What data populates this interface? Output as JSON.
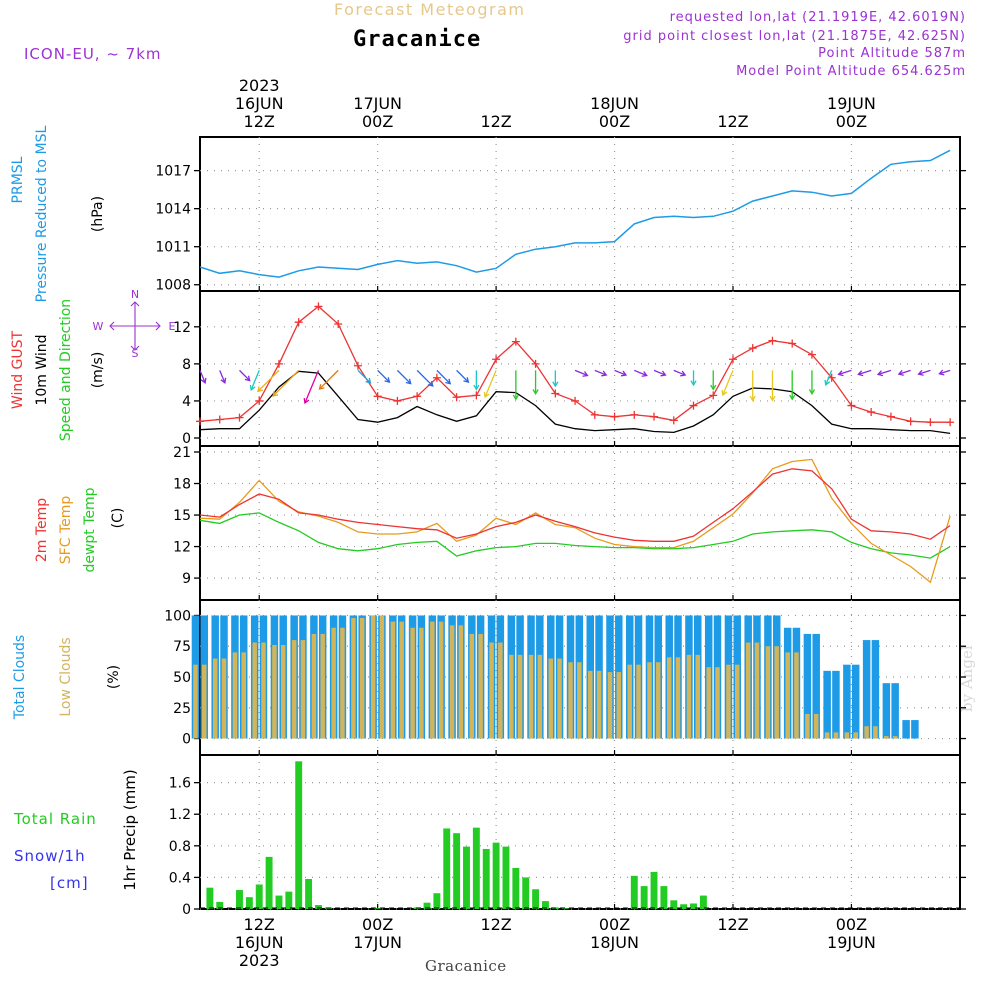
{
  "header": {
    "super_title": "Forecast Meteogram",
    "location": "Gracanice",
    "model": "ICON-EU, ~ 7km",
    "requested": "requested lon,lat (21.1919E, 42.6019N)",
    "grid_point": "grid point closest lon,lat (21.1875E, 42.625N)",
    "point_altitude": "Point Altitude 587m",
    "model_altitude": "Model Point Altitude 654.625m",
    "footer_location": "Gracanice",
    "watermark": "by Angel"
  },
  "colors": {
    "pressure": "#1e9be6",
    "gust": "#ee3333",
    "wind": "#000000",
    "temp2m": "#ee3333",
    "sfc_temp": "#e69b1e",
    "dewpt": "#22cc22",
    "total_clouds": "#1e9be6",
    "low_clouds": "#d2b45a",
    "rain": "#22cc22",
    "snow": "#3333ee",
    "purple_label": "#9b32d2"
  },
  "chart_data": [
    {
      "id": "pressure",
      "type": "line",
      "ylabel": [
        "PRMSL",
        "Pressure Reduced to MSL"
      ],
      "unit": "(hPa)",
      "yticks": [
        1008,
        1011,
        1014,
        1017
      ],
      "ylim": [
        1007.9,
        1019.1
      ],
      "x_hours": [
        0,
        2,
        4,
        6,
        8,
        10,
        12,
        14,
        16,
        18,
        20,
        22,
        24,
        26,
        28,
        30,
        32,
        34,
        36,
        38,
        40,
        42,
        44,
        46,
        48,
        50,
        52,
        54,
        56,
        58,
        60,
        62,
        64,
        66,
        68,
        70,
        72,
        74,
        76
      ],
      "series": [
        {
          "values": [
            1009.4,
            1008.9,
            1009.1,
            1008.8,
            1008.6,
            1009.1,
            1009.4,
            1009.3,
            1009.2,
            1009.6,
            1009.9,
            1009.7,
            1009.8,
            1009.5,
            1009.0,
            1009.3,
            1010.4,
            1010.8,
            1011.0,
            1011.3,
            1011.3,
            1011.4,
            1012.8,
            1013.3,
            1013.4,
            1013.3,
            1013.4,
            1013.8,
            1014.6,
            1015.0,
            1015.4,
            1015.3,
            1015.0,
            1015.2,
            1016.4,
            1017.5,
            1017.7,
            1017.8,
            1018.6
          ]
        }
      ]
    },
    {
      "id": "wind",
      "type": "line",
      "ylabel": [
        "Wind GUST",
        "10m Wind",
        "Speed and Direction"
      ],
      "unit": "(m/s)",
      "compass": [
        "N",
        "S",
        "W",
        "E"
      ],
      "yticks": [
        0,
        4,
        8,
        12
      ],
      "ylim": [
        0,
        15
      ],
      "x_hours": [
        0,
        2,
        4,
        6,
        8,
        10,
        12,
        14,
        16,
        18,
        20,
        22,
        24,
        26,
        28,
        30,
        32,
        34,
        36,
        38,
        40,
        42,
        44,
        46,
        48,
        50,
        52,
        54,
        56,
        58,
        60,
        62,
        64,
        66,
        68,
        70,
        72,
        74,
        76
      ],
      "series": [
        {
          "name": "Wind GUST",
          "values": [
            1.8,
            2.0,
            2.2,
            4.0,
            8.0,
            12.5,
            14.2,
            12.3,
            7.8,
            4.5,
            4.0,
            4.5,
            6.5,
            4.4,
            4.6,
            8.5,
            10.4,
            8.0,
            4.8,
            4.0,
            2.5,
            2.3,
            2.5,
            2.3,
            1.9,
            3.5,
            4.6,
            8.5,
            9.7,
            10.5,
            10.2,
            9.0,
            6.5,
            3.5,
            2.8,
            2.3,
            1.8,
            1.7,
            1.7
          ]
        },
        {
          "name": "10m Wind",
          "values": [
            0.9,
            1.0,
            1.0,
            3.0,
            5.5,
            7.2,
            7.0,
            4.5,
            2.0,
            1.7,
            2.2,
            3.4,
            2.5,
            1.8,
            2.4,
            5.0,
            4.9,
            3.5,
            1.5,
            1.0,
            0.8,
            0.9,
            1.0,
            0.7,
            0.6,
            1.3,
            2.5,
            4.5,
            5.4,
            5.3,
            5.0,
            3.5,
            1.5,
            1.0,
            1.0,
            0.9,
            0.8,
            0.8,
            0.5
          ]
        }
      ]
    },
    {
      "id": "temperature",
      "type": "line",
      "ylabel": [
        "2m Temp",
        "SFC Temp",
        "dewpt Temp"
      ],
      "unit": "(C)",
      "yticks": [
        9,
        12,
        15,
        18,
        21
      ],
      "ylim": [
        7.2,
        21
      ],
      "x_hours": [
        0,
        2,
        4,
        6,
        8,
        10,
        12,
        14,
        16,
        18,
        20,
        22,
        24,
        26,
        28,
        30,
        32,
        34,
        36,
        38,
        40,
        42,
        44,
        46,
        48,
        50,
        52,
        54,
        56,
        58,
        60,
        62,
        64,
        66,
        68,
        70,
        72,
        74,
        76
      ],
      "series": [
        {
          "name": "2m Temp",
          "values": [
            15.0,
            14.8,
            16.0,
            17.0,
            16.5,
            15.2,
            15.0,
            14.6,
            14.3,
            14.1,
            13.9,
            13.7,
            13.6,
            12.8,
            13.2,
            13.9,
            14.3,
            15.0,
            14.4,
            13.9,
            13.3,
            12.9,
            12.6,
            12.5,
            12.5,
            13.0,
            14.3,
            15.6,
            17.2,
            18.9,
            19.4,
            19.2,
            17.5,
            14.6,
            13.5,
            13.4,
            13.2,
            12.7,
            14.0
          ]
        },
        {
          "name": "SFC Temp",
          "values": [
            14.7,
            14.6,
            16.2,
            18.3,
            16.3,
            15.3,
            14.9,
            14.3,
            13.4,
            13.2,
            13.2,
            13.4,
            14.2,
            12.5,
            13.1,
            14.7,
            14.1,
            15.2,
            14.1,
            13.8,
            12.8,
            12.2,
            12.0,
            11.9,
            11.9,
            12.5,
            13.8,
            15.1,
            17.1,
            19.4,
            20.1,
            20.3,
            16.6,
            14.2,
            12.3,
            11.2,
            10.1,
            8.6,
            14.9
          ]
        },
        {
          "name": "dewpt Temp",
          "values": [
            14.5,
            14.2,
            15.0,
            15.2,
            14.3,
            13.5,
            12.4,
            11.8,
            11.6,
            11.8,
            12.2,
            12.4,
            12.5,
            11.1,
            11.6,
            11.9,
            12.0,
            12.3,
            12.3,
            12.1,
            12.0,
            11.9,
            11.9,
            11.8,
            11.8,
            11.9,
            12.2,
            12.5,
            13.2,
            13.4,
            13.5,
            13.6,
            13.4,
            12.4,
            11.8,
            11.4,
            11.2,
            10.9,
            12.0
          ]
        }
      ]
    },
    {
      "id": "clouds",
      "type": "bar",
      "ylabel": [
        "Total Clouds",
        "Low Clouds"
      ],
      "unit": "(%)",
      "yticks": [
        0,
        25,
        50,
        75,
        100
      ],
      "ylim": [
        -2,
        102
      ],
      "x_hours": [
        0,
        2,
        4,
        6,
        8,
        10,
        12,
        14,
        16,
        18,
        20,
        22,
        24,
        26,
        28,
        30,
        32,
        34,
        36,
        38,
        40,
        42,
        44,
        46,
        48,
        50,
        52,
        54,
        56,
        58,
        60,
        62,
        64,
        66,
        68,
        70,
        72,
        74,
        76
      ],
      "series": [
        {
          "name": "Total Clouds",
          "values": [
            100,
            100,
            100,
            100,
            100,
            100,
            100,
            100,
            100,
            100,
            100,
            100,
            100,
            100,
            100,
            100,
            100,
            100,
            100,
            100,
            100,
            100,
            100,
            100,
            100,
            100,
            100,
            100,
            100,
            100,
            90,
            85,
            55,
            60,
            80,
            45,
            15,
            0,
            0
          ]
        },
        {
          "name": "Low Clouds",
          "values": [
            60,
            65,
            70,
            78,
            76,
            80,
            85,
            90,
            98,
            100,
            95,
            90,
            95,
            92,
            85,
            78,
            68,
            68,
            65,
            62,
            55,
            54,
            60,
            62,
            66,
            68,
            58,
            60,
            78,
            75,
            70,
            20,
            5,
            5,
            10,
            2,
            0,
            0,
            0
          ]
        }
      ]
    },
    {
      "id": "precip",
      "type": "bar",
      "ylabel": [
        "Total Rain",
        "Snow/1h",
        "[cm]"
      ],
      "unit": "1hr Precip (mm)",
      "yticks": [
        0,
        0.4,
        0.8,
        1.2,
        1.6
      ],
      "ylim": [
        0,
        1.95
      ],
      "x_hours": [
        1,
        2,
        4,
        5,
        6,
        7,
        8,
        9,
        10,
        11,
        12,
        13,
        18,
        22,
        23,
        24,
        25,
        26,
        27,
        28,
        29,
        30,
        31,
        32,
        33,
        34,
        35,
        36,
        37,
        44,
        45,
        46,
        47,
        48,
        49,
        50,
        51
      ],
      "series": [
        {
          "name": "Total Rain",
          "values": [
            0.27,
            0.09,
            0.24,
            0.15,
            0.31,
            0.66,
            0.17,
            0.22,
            1.87,
            0.38,
            0.05,
            0.02,
            0.01,
            0.02,
            0.08,
            0.2,
            1.02,
            0.96,
            0.79,
            1.03,
            0.76,
            0.84,
            0.79,
            0.52,
            0.4,
            0.25,
            0.1,
            0.02,
            0.01,
            0.42,
            0.29,
            0.47,
            0.29,
            0.11,
            0.06,
            0.07,
            0.17
          ]
        },
        {
          "name": "Snow/1h",
          "values": [
            0,
            0,
            0,
            0,
            0,
            0,
            0,
            0,
            0,
            0,
            0,
            0,
            0,
            0,
            0,
            0,
            0,
            0,
            0,
            0,
            0,
            0,
            0,
            0,
            0,
            0,
            0,
            0,
            0,
            0,
            0,
            0,
            0,
            0,
            0,
            0,
            0
          ]
        }
      ]
    }
  ],
  "wind_arrows": {
    "x_hours": [
      0,
      2,
      4,
      6,
      8,
      10,
      12,
      14,
      16,
      18,
      20,
      22,
      24,
      26,
      28,
      30,
      32,
      34,
      36,
      38,
      40,
      42,
      44,
      46,
      48,
      50,
      52,
      54,
      56,
      58,
      60,
      62,
      64,
      66,
      68,
      70,
      72,
      74,
      76
    ],
    "length": [
      0.5,
      0.5,
      0.6,
      1.2,
      2.0,
      2.6,
      2.5,
      1.7,
      0.9,
      0.8,
      1.0,
      1.3,
      1.0,
      0.8,
      1.0,
      1.9,
      1.9,
      1.4,
      0.7,
      0.5,
      0.4,
      0.4,
      0.5,
      0.4,
      0.4,
      0.6,
      1.0,
      1.7,
      2.0,
      2.0,
      1.9,
      1.4,
      0.7,
      0.5,
      0.5,
      0.5,
      0.4,
      0.4,
      0.3
    ],
    "direction": [
      "sse",
      "sse",
      "se",
      "ssw",
      "sw",
      "sw",
      "ssw",
      "sw",
      "se",
      "se",
      "se",
      "se",
      "se",
      "se",
      "s",
      "ssw",
      "s",
      "s",
      "s",
      "ese",
      "ese",
      "ese",
      "ese",
      "ese",
      "ese",
      "s",
      "s",
      "ssw",
      "s",
      "s",
      "s",
      "s",
      "ssw",
      "ene",
      "ene",
      "ene",
      "ene",
      "ene",
      "ene"
    ],
    "colors": [
      "#8c28dc",
      "#8c28dc",
      "#8c28dc",
      "#18c8c8",
      "#e6b41e",
      "#e0a020",
      "#e000a0",
      "#e07a10",
      "#2aa0d2",
      "#2a6ae0",
      "#2a6ae0",
      "#2a6ae0",
      "#2a6ae0",
      "#2a6ae0",
      "#18c8c8",
      "#e6c81e",
      "#22cc22",
      "#22cc22",
      "#18c8c8",
      "#8c28dc",
      "#8c28dc",
      "#8c28dc",
      "#8c28dc",
      "#8c28dc",
      "#8c28dc",
      "#18c8c8",
      "#22cc22",
      "#e6c81e",
      "#e6c81e",
      "#e6c81e",
      "#22cc22",
      "#22cc22",
      "#18c8c8",
      "#8c28dc",
      "#8c28dc",
      "#8c28dc",
      "#8c28dc",
      "#8c28dc",
      "#8c28dc"
    ]
  },
  "x_axis": {
    "ticks": [
      {
        "hour": 6,
        "top": "12Z",
        "bottom": "12Z",
        "date": "16JUN",
        "year": "2023"
      },
      {
        "hour": 18,
        "top": "00Z",
        "bottom": "00Z",
        "date": "17JUN",
        "year": ""
      },
      {
        "hour": 30,
        "top": "12Z",
        "bottom": "12Z",
        "date": "",
        "year": ""
      },
      {
        "hour": 42,
        "top": "00Z",
        "bottom": "00Z",
        "date": "18JUN",
        "year": ""
      },
      {
        "hour": 54,
        "top": "12Z",
        "bottom": "12Z",
        "date": "",
        "year": ""
      },
      {
        "hour": 66,
        "top": "00Z",
        "bottom": "00Z",
        "date": "19JUN",
        "year": ""
      }
    ],
    "range_hours": [
      0,
      77
    ]
  }
}
